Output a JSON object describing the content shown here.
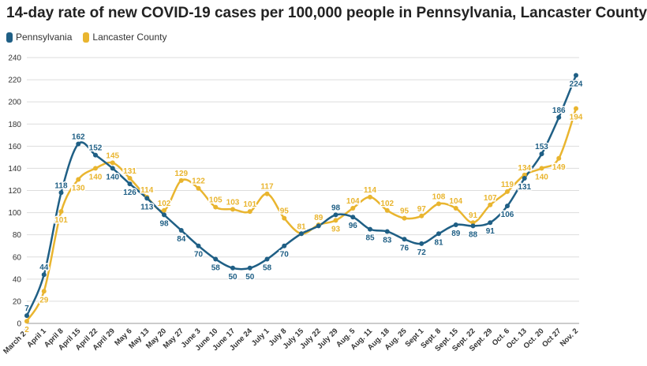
{
  "chart_data": {
    "type": "line",
    "title": "14-day rate of new COVID-19 cases per 100,000 people in Pennsylvania, Lancaster County",
    "xlabel": "",
    "ylabel": "",
    "ylim": [
      0,
      240
    ],
    "yticks": [
      0,
      20,
      40,
      60,
      80,
      100,
      120,
      140,
      160,
      180,
      200,
      220,
      240
    ],
    "grid": true,
    "legend_position": "top-left",
    "categories": [
      "March 24",
      "April 1",
      "April 8",
      "April 15",
      "April 22",
      "April 29",
      "May 6",
      "May 13",
      "May 20",
      "May 27",
      "June 3",
      "June 10",
      "June 17",
      "June 24",
      "July 1",
      "July 8",
      "July 15",
      "July 22",
      "July 29",
      "Aug. 5",
      "Aug. 11",
      "Aug. 18",
      "Aug. 25",
      "Sept 1",
      "Sept. 8",
      "Sept. 15",
      "Sept. 22",
      "Sept. 29",
      "Oct. 6",
      "Oct. 13",
      "Oct. 20",
      "Oct 27",
      "Nov. 2"
    ],
    "series": [
      {
        "name": "Pennsylvania",
        "color": "#1f5f85",
        "values": [
          7,
          44,
          118,
          162,
          152,
          140,
          126,
          113,
          98,
          84,
          70,
          58,
          50,
          50,
          58,
          70,
          81,
          88,
          98,
          96,
          85,
          83,
          76,
          72,
          81,
          89,
          88,
          91,
          106,
          131,
          153,
          186,
          224
        ],
        "labels": [
          "7",
          "44",
          "118",
          "162",
          "152",
          "140",
          "126",
          "113",
          "98",
          "84",
          "70",
          "58",
          "50",
          "50",
          "58",
          "70",
          "",
          "",
          "98",
          "96",
          "85",
          "83",
          "76",
          "72",
          "81",
          "89",
          "88",
          "91",
          "106",
          "131",
          "153",
          "186",
          "224"
        ]
      },
      {
        "name": "Lancaster County",
        "color": "#e9b52f",
        "values": [
          2,
          29,
          101,
          130,
          140,
          145,
          131,
          114,
          102,
          129,
          122,
          105,
          103,
          101,
          117,
          95,
          81,
          89,
          93,
          104,
          114,
          102,
          95,
          97,
          108,
          104,
          91,
          107,
          119,
          134,
          140,
          149,
          194
        ],
        "labels": [
          "2",
          "29",
          "101",
          "130",
          "140",
          "145",
          "131",
          "114",
          "102",
          "129",
          "122",
          "105",
          "103",
          "101",
          "117",
          "95",
          "81",
          "89",
          "93",
          "104",
          "114",
          "102",
          "95",
          "97",
          "108",
          "104",
          "91",
          "107",
          "119",
          "134",
          "140",
          "149",
          "194"
        ]
      }
    ]
  }
}
